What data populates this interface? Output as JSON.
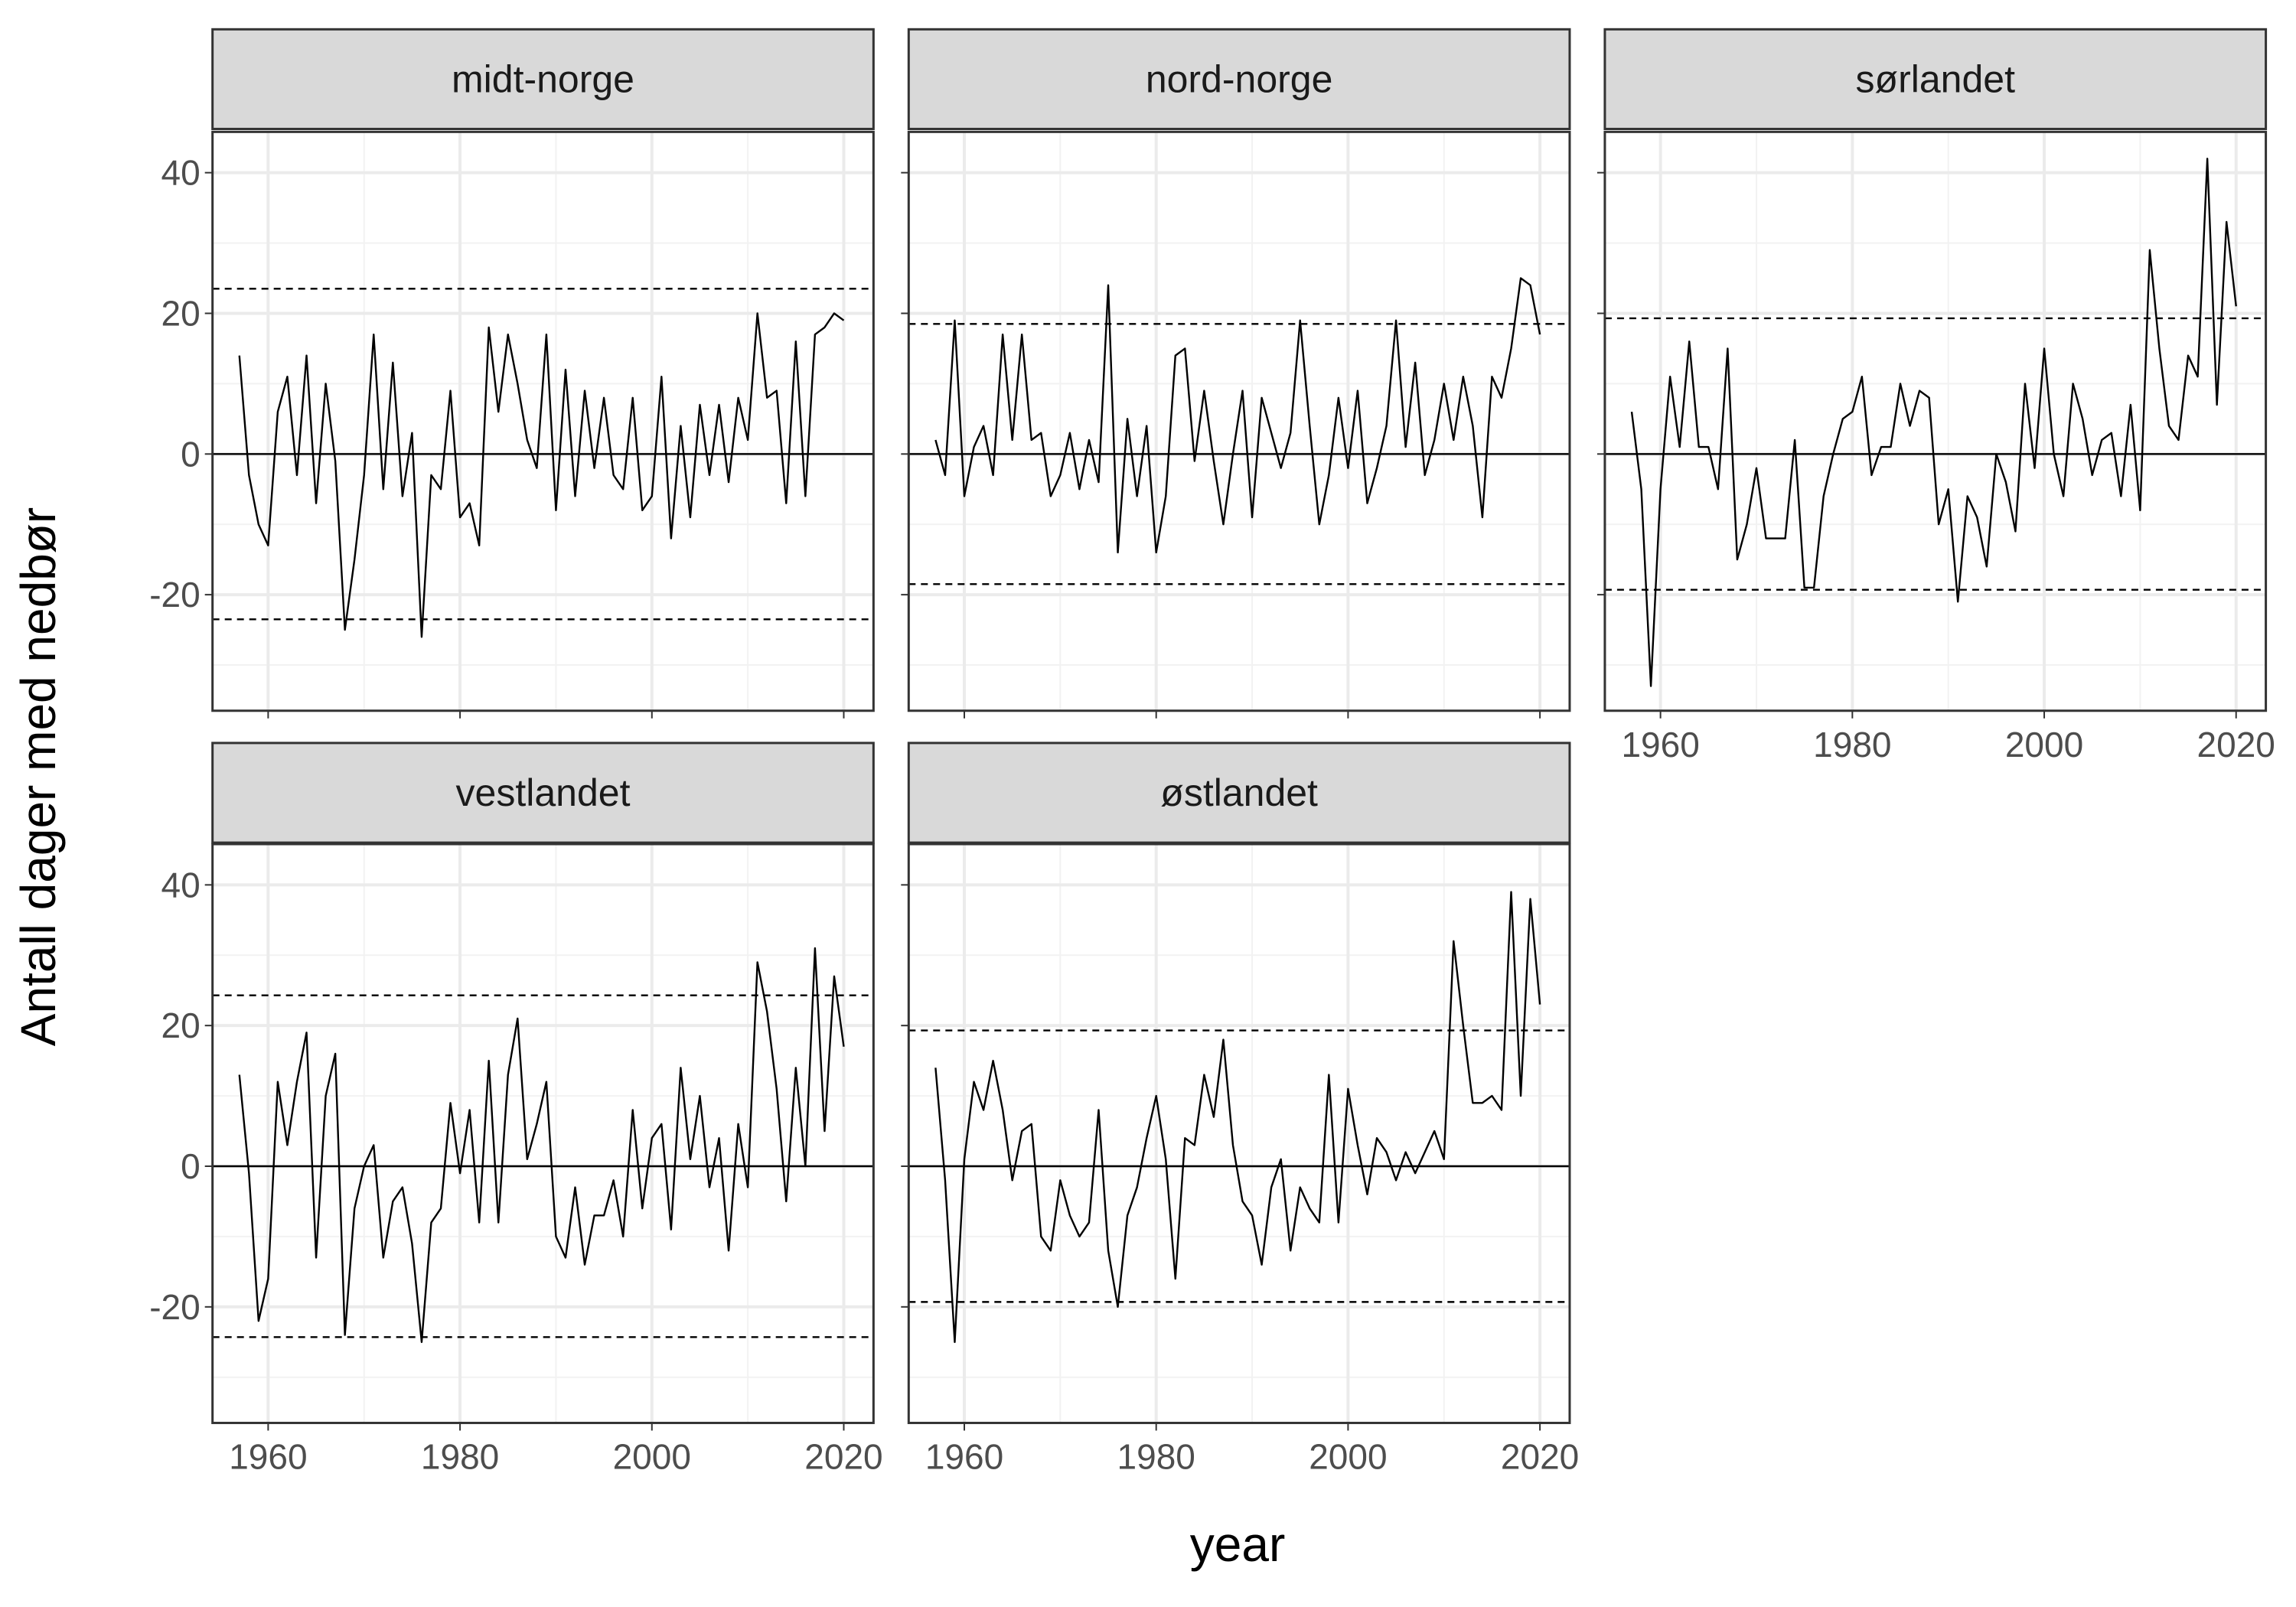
{
  "xlabel": "year",
  "ylabel": "Antall dager med nedbør",
  "chart_data": [
    {
      "type": "line",
      "title": "midt-norge",
      "x": [
        1957,
        1958,
        1959,
        1960,
        1961,
        1962,
        1963,
        1964,
        1965,
        1966,
        1967,
        1968,
        1969,
        1970,
        1971,
        1972,
        1973,
        1974,
        1975,
        1976,
        1977,
        1978,
        1979,
        1980,
        1981,
        1982,
        1983,
        1984,
        1985,
        1986,
        1987,
        1988,
        1989,
        1990,
        1991,
        1992,
        1993,
        1994,
        1995,
        1996,
        1997,
        1998,
        1999,
        2000,
        2001,
        2002,
        2003,
        2004,
        2005,
        2006,
        2007,
        2008,
        2009,
        2010,
        2011,
        2012,
        2013,
        2014,
        2015,
        2016,
        2017,
        2018,
        2019,
        2020
      ],
      "values": [
        14,
        -3,
        -10,
        -13,
        6,
        11,
        -3,
        14,
        -7,
        10,
        -1,
        -25,
        -15,
        -3,
        17,
        -5,
        13,
        -6,
        3,
        -26,
        -3,
        -5,
        9,
        -9,
        -7,
        -13,
        18,
        6,
        17,
        10,
        2,
        -2,
        17,
        -8,
        12,
        -6,
        9,
        -2,
        8,
        -3,
        -5,
        8,
        -8,
        -6,
        11,
        -12,
        4,
        -9,
        7,
        -3,
        7,
        -4,
        8,
        2,
        20,
        8,
        9,
        -7,
        16,
        -6,
        17,
        18,
        20,
        19
      ],
      "color": "#000000",
      "reference_lines": [
        {
          "value": 0,
          "style": "solid"
        },
        {
          "value": 23.5,
          "style": "dashed"
        },
        {
          "value": -23.5,
          "style": "dashed"
        }
      ],
      "xlim": [
        1954.2,
        2023.1
      ],
      "ylim": [
        -36.5,
        45.8
      ],
      "xticks": [
        1960,
        1980,
        2000,
        2020
      ],
      "yticks": [
        -20,
        0,
        20,
        40
      ],
      "grid": true
    },
    {
      "type": "line",
      "title": "nord-norge",
      "x": [
        1957,
        1958,
        1959,
        1960,
        1961,
        1962,
        1963,
        1964,
        1965,
        1966,
        1967,
        1968,
        1969,
        1970,
        1971,
        1972,
        1973,
        1974,
        1975,
        1976,
        1977,
        1978,
        1979,
        1980,
        1981,
        1982,
        1983,
        1984,
        1985,
        1986,
        1987,
        1988,
        1989,
        1990,
        1991,
        1992,
        1993,
        1994,
        1995,
        1996,
        1997,
        1998,
        1999,
        2000,
        2001,
        2002,
        2003,
        2004,
        2005,
        2006,
        2007,
        2008,
        2009,
        2010,
        2011,
        2012,
        2013,
        2014,
        2015,
        2016,
        2017,
        2018,
        2019,
        2020
      ],
      "values": [
        2,
        -3,
        19,
        -6,
        1,
        4,
        -3,
        17,
        2,
        17,
        2,
        3,
        -6,
        -3,
        3,
        -5,
        2,
        -4,
        24,
        -14,
        5,
        -6,
        4,
        -14,
        -6,
        14,
        15,
        -1,
        9,
        -1,
        -10,
        0,
        9,
        -9,
        8,
        3,
        -2,
        3,
        19,
        4,
        -10,
        -3,
        8,
        -2,
        9,
        -7,
        -2,
        4,
        19,
        1,
        13,
        -3,
        2,
        10,
        2,
        11,
        4,
        -9,
        11,
        8,
        15,
        25,
        24,
        17
      ],
      "color": "#000000",
      "reference_lines": [
        {
          "value": 0,
          "style": "solid"
        },
        {
          "value": 18.5,
          "style": "dashed"
        },
        {
          "value": -18.5,
          "style": "dashed"
        }
      ],
      "xlim": [
        1954.2,
        2023.1
      ],
      "ylim": [
        -36.5,
        45.8
      ],
      "xticks": [
        1960,
        1980,
        2000,
        2020
      ],
      "yticks": [
        -20,
        0,
        20,
        40
      ],
      "grid": true
    },
    {
      "type": "line",
      "title": "sørlandet",
      "x": [
        1957,
        1958,
        1959,
        1960,
        1961,
        1962,
        1963,
        1964,
        1965,
        1966,
        1967,
        1968,
        1969,
        1970,
        1971,
        1972,
        1973,
        1974,
        1975,
        1976,
        1977,
        1978,
        1979,
        1980,
        1981,
        1982,
        1983,
        1984,
        1985,
        1986,
        1987,
        1988,
        1989,
        1990,
        1991,
        1992,
        1993,
        1994,
        1995,
        1996,
        1997,
        1998,
        1999,
        2000,
        2001,
        2002,
        2003,
        2004,
        2005,
        2006,
        2007,
        2008,
        2009,
        2010,
        2011,
        2012,
        2013,
        2014,
        2015,
        2016,
        2017,
        2018,
        2019,
        2020
      ],
      "values": [
        6,
        -5,
        -33,
        -5,
        11,
        1,
        16,
        1,
        1,
        -5,
        15,
        -15,
        -10,
        -2,
        -12,
        -12,
        -12,
        2,
        -19,
        -19,
        -6,
        0,
        5,
        6,
        11,
        -3,
        1,
        1,
        10,
        4,
        9,
        8,
        -10,
        -5,
        -21,
        -6,
        -9,
        -16,
        0,
        -4,
        -11,
        10,
        -2,
        15,
        0,
        -6,
        10,
        5,
        -3,
        2,
        3,
        -6,
        7,
        -8,
        29,
        15,
        4,
        2,
        14,
        11,
        42,
        7,
        33,
        21
      ],
      "color": "#000000",
      "reference_lines": [
        {
          "value": 0,
          "style": "solid"
        },
        {
          "value": 19.3,
          "style": "dashed"
        },
        {
          "value": -19.3,
          "style": "dashed"
        }
      ],
      "xlim": [
        1954.2,
        2023.1
      ],
      "ylim": [
        -36.5,
        45.8
      ],
      "xticks": [
        1960,
        1980,
        2000,
        2020
      ],
      "yticks": [
        -20,
        0,
        20,
        40
      ],
      "grid": true
    },
    {
      "type": "line",
      "title": "vestlandet",
      "x": [
        1957,
        1958,
        1959,
        1960,
        1961,
        1962,
        1963,
        1964,
        1965,
        1966,
        1967,
        1968,
        1969,
        1970,
        1971,
        1972,
        1973,
        1974,
        1975,
        1976,
        1977,
        1978,
        1979,
        1980,
        1981,
        1982,
        1983,
        1984,
        1985,
        1986,
        1987,
        1988,
        1989,
        1990,
        1991,
        1992,
        1993,
        1994,
        1995,
        1996,
        1997,
        1998,
        1999,
        2000,
        2001,
        2002,
        2003,
        2004,
        2005,
        2006,
        2007,
        2008,
        2009,
        2010,
        2011,
        2012,
        2013,
        2014,
        2015,
        2016,
        2017,
        2018,
        2019,
        2020
      ],
      "values": [
        13,
        -1,
        -22,
        -16,
        12,
        3,
        12,
        19,
        -13,
        10,
        16,
        -24,
        -6,
        0,
        3,
        -13,
        -5,
        -3,
        -11,
        -25,
        -8,
        -6,
        9,
        -1,
        8,
        -8,
        15,
        -8,
        13,
        21,
        1,
        6,
        12,
        -10,
        -13,
        -3,
        -14,
        -7,
        -7,
        -2,
        -10,
        8,
        -6,
        4,
        6,
        -9,
        14,
        1,
        10,
        -3,
        4,
        -12,
        6,
        -3,
        29,
        22,
        11,
        -5,
        14,
        0,
        31,
        5,
        27,
        17
      ],
      "color": "#000000",
      "reference_lines": [
        {
          "value": 0,
          "style": "solid"
        },
        {
          "value": 24.3,
          "style": "dashed"
        },
        {
          "value": -24.3,
          "style": "dashed"
        }
      ],
      "xlim": [
        1954.2,
        2023.1
      ],
      "ylim": [
        -36.5,
        45.8
      ],
      "xticks": [
        1960,
        1980,
        2000,
        2020
      ],
      "yticks": [
        -20,
        0,
        20,
        40
      ],
      "grid": true
    },
    {
      "type": "line",
      "title": "østlandet",
      "x": [
        1957,
        1958,
        1959,
        1960,
        1961,
        1962,
        1963,
        1964,
        1965,
        1966,
        1967,
        1968,
        1969,
        1970,
        1971,
        1972,
        1973,
        1974,
        1975,
        1976,
        1977,
        1978,
        1979,
        1980,
        1981,
        1982,
        1983,
        1984,
        1985,
        1986,
        1987,
        1988,
        1989,
        1990,
        1991,
        1992,
        1993,
        1994,
        1995,
        1996,
        1997,
        1998,
        1999,
        2000,
        2001,
        2002,
        2003,
        2004,
        2005,
        2006,
        2007,
        2008,
        2009,
        2010,
        2011,
        2012,
        2013,
        2014,
        2015,
        2016,
        2017,
        2018,
        2019,
        2020
      ],
      "values": [
        14,
        -2,
        -25,
        1,
        12,
        8,
        15,
        8,
        -2,
        5,
        6,
        -10,
        -12,
        -2,
        -7,
        -10,
        -8,
        8,
        -12,
        -20,
        -7,
        -3,
        4,
        10,
        1,
        -16,
        4,
        3,
        13,
        7,
        18,
        3,
        -5,
        -7,
        -14,
        -3,
        1,
        -12,
        -3,
        -6,
        -8,
        13,
        -8,
        11,
        3,
        -4,
        4,
        2,
        -2,
        2,
        -1,
        2,
        5,
        1,
        32,
        20,
        9,
        9,
        10,
        8,
        39,
        10,
        38,
        23
      ],
      "color": "#000000",
      "reference_lines": [
        {
          "value": 0,
          "style": "solid"
        },
        {
          "value": 19.3,
          "style": "dashed"
        },
        {
          "value": -19.3,
          "style": "dashed"
        }
      ],
      "xlim": [
        1954.2,
        2023.1
      ],
      "ylim": [
        -36.5,
        45.8
      ],
      "xticks": [
        1960,
        1980,
        2000,
        2020
      ],
      "yticks": [
        -20,
        0,
        20,
        40
      ],
      "grid": true
    }
  ]
}
